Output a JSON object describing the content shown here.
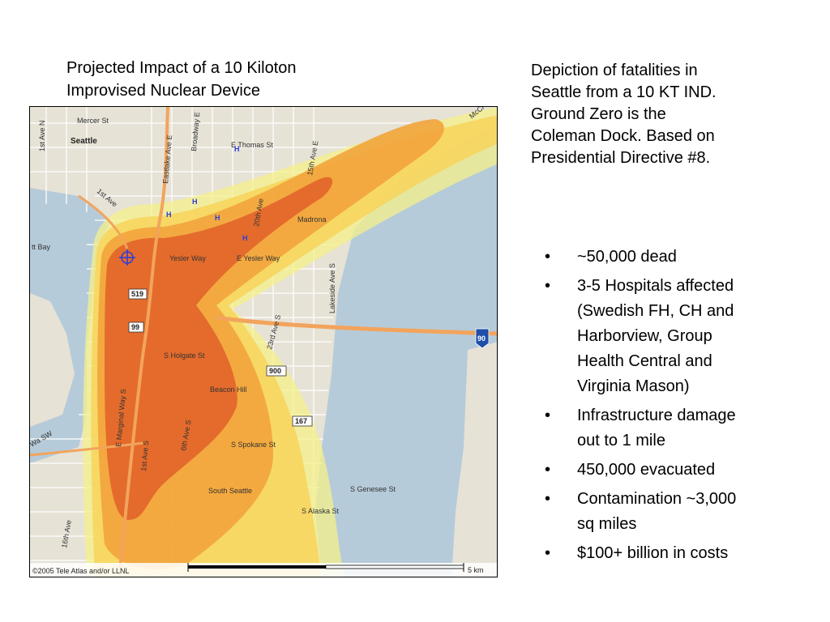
{
  "title": {
    "line1": "Projected Impact of a 10 Kiloton",
    "line2": "Improvised Nuclear Device"
  },
  "description": {
    "lines": [
      "Depiction of fatalities in",
      "Seattle from a 10 KT IND.",
      "Ground Zero is the",
      "Coleman Dock.  Based on",
      "Presidential Directive #8."
    ]
  },
  "bullets": [
    {
      "dot": "•",
      "lines": [
        "~50,000 dead"
      ]
    },
    {
      "dot": "•",
      "lines": [
        "3-5 Hospitals affected",
        "(Swedish FH, CH and",
        "Harborview, Group",
        "Health Central and",
        "Virginia Mason)"
      ]
    },
    {
      "dot": "•",
      "lines": [
        "Infrastructure damage",
        "out to 1 mile"
      ]
    },
    {
      "dot": "•",
      "lines": [
        "450,000 evacuated"
      ]
    },
    {
      "dot": "•",
      "lines": [
        "Contamination ~3,000",
        "sq miles"
      ]
    },
    {
      "dot": "•",
      "lines": [
        "$100+ billion in costs"
      ]
    }
  ],
  "map": {
    "labels": {
      "seattle": "Seattle",
      "mercer": "Mercer St",
      "thomas": "E Thomas St",
      "first_ave_n": "1st Ave N",
      "eastlake": "Eastlake Ave E",
      "broadway": "Broadway E",
      "fifteenth": "15th Ave E",
      "mccl": "McCl",
      "first_ave": "1st Ave",
      "bay": "tt Bay",
      "yesler": "Yesler Way",
      "e_yesler": "E Yesler Way",
      "madrona": "Madrona",
      "twentieth": "20th Ave",
      "twentythird": "23rd Ave S",
      "lakeside": "Lakeside Ave S",
      "holgate": "S Holgate St",
      "beacon": "Beacon Hill",
      "spokane": "S Spokane St",
      "marginal": "E Marginal Way S",
      "first_ave_s": "1st Ave S",
      "sixth": "6th Ave S",
      "south_seattle": "South Seattle",
      "genesee": "S Genesee St",
      "alaska": "S Alaska St",
      "wsw": "Wa SW",
      "sixteenth": "16th Ave",
      "h": "H",
      "copyright": "©2005 Tele Atlas and/or LLNL",
      "scale": "5 km"
    },
    "shields": {
      "s519": "519",
      "s99": "99",
      "s900": "900",
      "s167": "167",
      "s90": "90"
    },
    "colors": {
      "water": "#b6cbd9",
      "land": "#e6e2d6",
      "street": "#ffffff",
      "highway": "#f2a45c",
      "outer_zone": "#f4f08a",
      "light_zone": "#f8d35a",
      "mid_zone": "#f2a43c",
      "inner_zone": "#e2642a",
      "ground_zero": "#2a3bdc"
    }
  }
}
